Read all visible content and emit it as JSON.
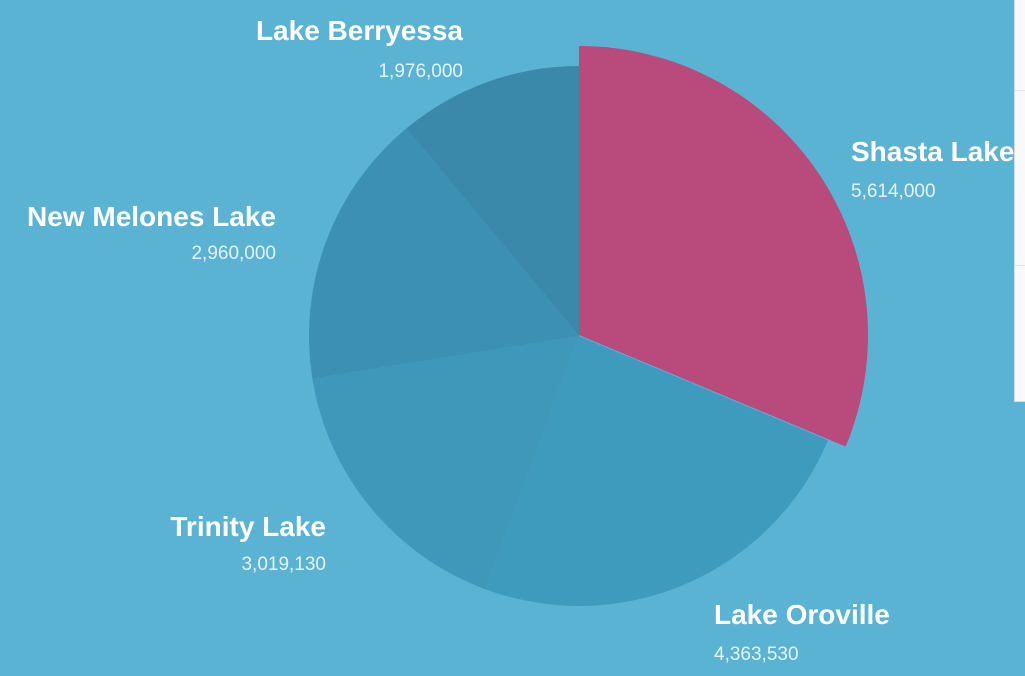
{
  "chart_data": {
    "type": "pie",
    "categories": [
      "Shasta Lake",
      "Lake Oroville",
      "Trinity Lake",
      "New Melones Lake",
      "Lake Berryessa"
    ],
    "values": [
      5614000,
      4363530,
      3019130,
      2960000,
      1976000
    ],
    "value_labels": [
      "5,614,000",
      "4,363,530",
      "3,019,130",
      "2,960,000",
      "1,976,000"
    ],
    "highlighted": "Shasta Lake",
    "colors": {
      "background": "#5bb3d3",
      "highlight": "#b84a7c",
      "slices": [
        "#b84a7c",
        "#3f9bbd",
        "#3f98b9",
        "#3c91b3",
        "#3a88aa"
      ]
    }
  }
}
